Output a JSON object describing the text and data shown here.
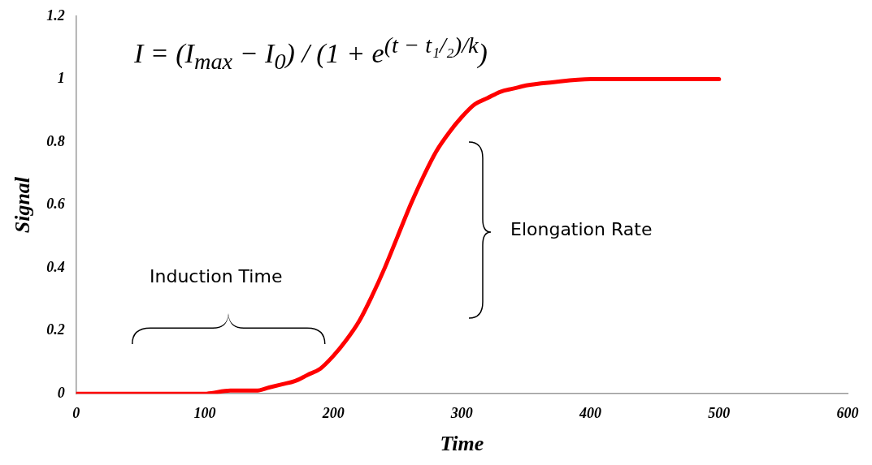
{
  "chart_data": {
    "type": "line",
    "xlabel": "Time",
    "ylabel": "Signal",
    "x": [
      0,
      50,
      100,
      120,
      140,
      150,
      160,
      170,
      180,
      190,
      200,
      210,
      220,
      230,
      240,
      250,
      260,
      270,
      280,
      290,
      300,
      310,
      320,
      330,
      340,
      350,
      370,
      400,
      450,
      500
    ],
    "series": [
      {
        "color": "#ff0000",
        "values": [
          0,
          0,
          0,
          0.01,
          0.01,
          0.02,
          0.03,
          0.04,
          0.06,
          0.08,
          0.12,
          0.17,
          0.23,
          0.31,
          0.4,
          0.5,
          0.6,
          0.69,
          0.77,
          0.83,
          0.88,
          0.92,
          0.94,
          0.96,
          0.97,
          0.98,
          0.99,
          1,
          1,
          1
        ]
      }
    ],
    "xlim": [
      0,
      600
    ],
    "xticks": [
      0,
      100,
      200,
      300,
      400,
      500,
      600
    ],
    "ylim": [
      0,
      1.2
    ],
    "yticks": [
      0,
      0.2,
      0.4,
      0.6,
      0.8,
      1,
      1.2
    ],
    "grid": false,
    "legend": false,
    "marker": "none",
    "line_style": "solid",
    "annotations": [
      "I = (I$_{max}$ − I$_{0}$) / (1 + e$^{(t − t₁/₂)/k}$)",
      "Induction Time",
      "Elongation Rate"
    ]
  }
}
